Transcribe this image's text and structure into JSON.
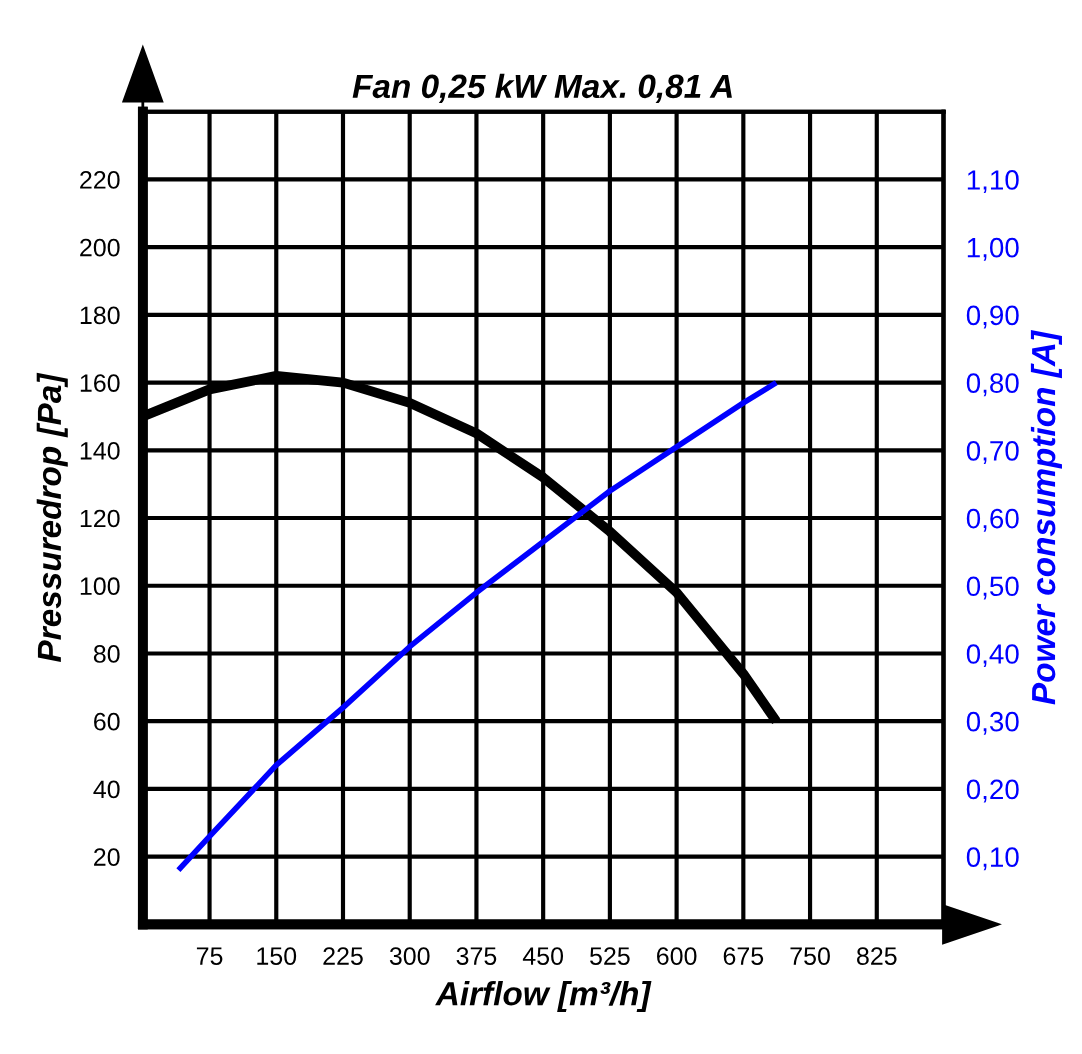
{
  "chart_data": {
    "type": "line",
    "title": "Fan 0,25 kW Max. 0,81 A",
    "xlabel": "Airflow [m³/h]",
    "ylabel": "Pressuredrop [Pa]",
    "y2label": "Power consumption [A]",
    "xlim": [
      0,
      900
    ],
    "xticks": [
      75,
      150,
      225,
      300,
      375,
      450,
      525,
      600,
      675,
      750,
      825
    ],
    "ylim": [
      0,
      240
    ],
    "yticks": [
      20,
      40,
      60,
      80,
      100,
      120,
      140,
      160,
      180,
      200,
      220
    ],
    "y2lim": [
      0,
      1.2
    ],
    "y2ticks": [
      {
        "value": 0.1,
        "label": "0,10"
      },
      {
        "value": 0.2,
        "label": "0,20"
      },
      {
        "value": 0.3,
        "label": "0,30"
      },
      {
        "value": 0.4,
        "label": "0,40"
      },
      {
        "value": 0.5,
        "label": "0,50"
      },
      {
        "value": 0.6,
        "label": "0,60"
      },
      {
        "value": 0.7,
        "label": "0,70"
      },
      {
        "value": 0.8,
        "label": "0,80"
      },
      {
        "value": 0.9,
        "label": "0,90"
      },
      {
        "value": 1.0,
        "label": "1,00"
      },
      {
        "value": 1.1,
        "label": "1,10"
      }
    ],
    "grid": true,
    "marker": "none",
    "line_style": "solid",
    "series": [
      {
        "color": "#000000",
        "x": [
          0,
          75,
          150,
          225,
          300,
          375,
          450,
          525,
          600,
          675,
          712
        ],
        "values": [
          150,
          158,
          162,
          160,
          154,
          145,
          132,
          116,
          98,
          74,
          60
        ]
      },
      {
        "color": "#0000ff",
        "axis": "y2",
        "x": [
          40,
          75,
          150,
          225,
          300,
          375,
          450,
          525,
          600,
          675,
          712
        ],
        "values": [
          0.08,
          0.13,
          0.235,
          0.32,
          0.41,
          0.49,
          0.565,
          0.64,
          0.705,
          0.77,
          0.8
        ]
      }
    ]
  }
}
